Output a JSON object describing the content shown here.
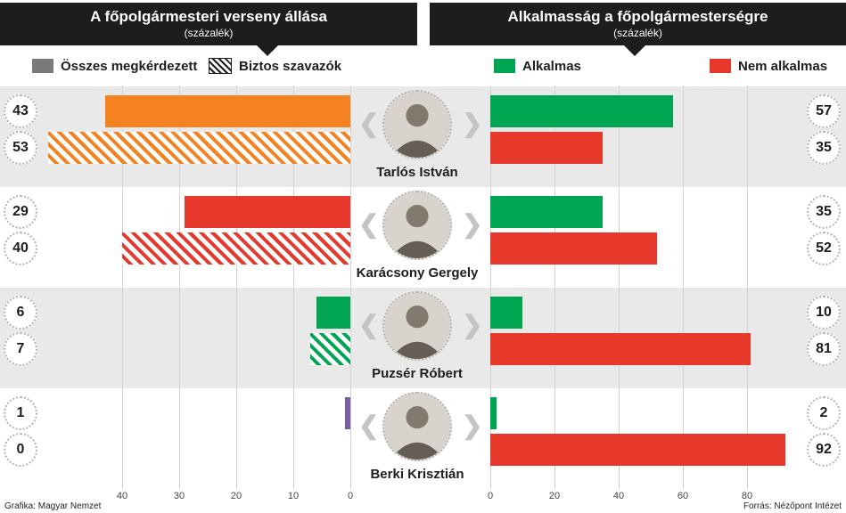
{
  "footer": {
    "credit": "Grafika: Magyar Nemzet",
    "source": "Forrás: Nézőpont Intézet"
  },
  "colors": {
    "all_respondents_swatch": "#7a7a7a",
    "hatch_swatch": "#1d1d1b",
    "suitable_green": "#00a551",
    "not_suitable_red": "#e6392c",
    "header_bg": "#1d1d1b",
    "row_band": "#e9e9e9"
  },
  "chart_data": [
    {
      "type": "bar",
      "title": "A főpolgármesteri verseny állása",
      "subtitle": "(százalék)",
      "orientation": "horizontal",
      "bars_grow": "right-to-left",
      "categories": [
        "Tarlós István",
        "Karácsony Gergely",
        "Puzsér Róbert",
        "Berki Krisztián"
      ],
      "series": [
        {
          "name": "Összes megkérdezett",
          "pattern": "solid",
          "values": [
            43,
            29,
            6,
            1
          ]
        },
        {
          "name": "Biztos szavazók",
          "pattern": "hatched",
          "values": [
            53,
            40,
            7,
            0
          ]
        }
      ],
      "bar_colors": [
        "#f58220",
        "#e6392c",
        "#00a551",
        "#7e5ba6"
      ],
      "ticks": [
        40,
        30,
        20,
        10,
        0
      ],
      "xlim": [
        0,
        55
      ],
      "grid": true,
      "legend_position": "top-left"
    },
    {
      "type": "bar",
      "title": "Alkalmasság a főpolgármesterségre",
      "subtitle": "(százalék)",
      "orientation": "horizontal",
      "bars_grow": "left-to-right",
      "categories": [
        "Tarlós István",
        "Karácsony Gergely",
        "Puzsér Róbert",
        "Berki Krisztián"
      ],
      "series": [
        {
          "name": "Alkalmas",
          "color": "#00a551",
          "values": [
            57,
            35,
            10,
            2
          ]
        },
        {
          "name": "Nem alkalmas",
          "color": "#e6392c",
          "values": [
            35,
            52,
            81,
            92
          ]
        }
      ],
      "ticks": [
        0,
        20,
        40,
        60,
        80
      ],
      "xlim": [
        0,
        95
      ],
      "grid": true,
      "legend_position": "top"
    }
  ]
}
